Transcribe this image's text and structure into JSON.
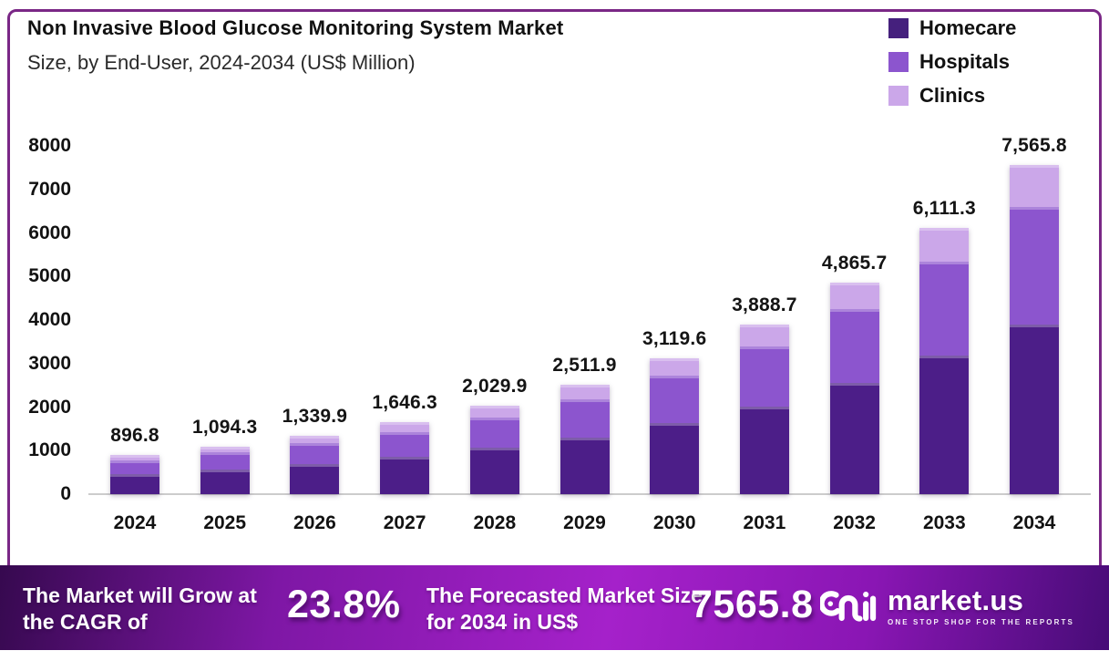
{
  "frame": {
    "border_color": "#7A2786"
  },
  "header": {
    "title": "Non Invasive Blood Glucose Monitoring System Market",
    "subtitle": "Size, by End-User, 2024-2034 (US$ Million)"
  },
  "legend": [
    {
      "label": "Homecare",
      "color": "#45207D"
    },
    {
      "label": "Hospitals",
      "color": "#8C55CE"
    },
    {
      "label": "Clinics",
      "color": "#CBA7E9"
    }
  ],
  "chart_data": {
    "type": "bar",
    "stacked": true,
    "title": "Non Invasive Blood Glucose Monitoring System Market Size, by End-User, 2024-2034 (US$ Million)",
    "xlabel": "",
    "ylabel": "US$ Million",
    "ylim": [
      0,
      8000
    ],
    "yticks": [
      0,
      1000,
      2000,
      3000,
      4000,
      5000,
      6000,
      7000,
      8000
    ],
    "grid": false,
    "legend_position": "top-right",
    "categories": [
      "2024",
      "2025",
      "2026",
      "2027",
      "2028",
      "2029",
      "2030",
      "2031",
      "2032",
      "2033",
      "2034"
    ],
    "series": [
      {
        "name": "Homecare",
        "color": "#4C1E88",
        "values": [
          470,
          570,
          700,
          855,
          1060,
          1300,
          1630,
          2010,
          2545,
          3180,
          3900
        ]
      },
      {
        "name": "Hospitals",
        "color": "#8C55CE",
        "values": [
          305,
          385,
          465,
          575,
          700,
          885,
          1100,
          1390,
          1705,
          2150,
          2690
        ]
      },
      {
        "name": "Clinics",
        "color": "#CBA7E9",
        "values": [
          121.8,
          139.3,
          174.9,
          216.3,
          269.9,
          326.9,
          389.6,
          488.7,
          615.7,
          781.3,
          975.8
        ]
      }
    ],
    "totals": [
      896.8,
      1094.3,
      1339.9,
      1646.3,
      2029.9,
      2511.9,
      3119.6,
      3888.7,
      4865.7,
      6111.3,
      7565.8
    ],
    "totals_labels": [
      "896.8",
      "1,094.3",
      "1,339.9",
      "1,646.3",
      "2,029.9",
      "2,511.9",
      "3,119.6",
      "3,888.7",
      "4,865.7",
      "6,111.3",
      "7,565.8"
    ]
  },
  "footer": {
    "cagr_text": "The Market will Grow at the CAGR of",
    "cagr_value": "23.8%",
    "forecast_text": "The Forecasted Market Size for 2034 in US$",
    "forecast_value": "7565.8",
    "brand_name": "market.us",
    "brand_tagline": "ONE STOP SHOP FOR THE REPORTS",
    "banner_gradient": [
      "#36094F",
      "#7E17A5",
      "#A521CA",
      "#8A16B4",
      "#470C77"
    ]
  }
}
